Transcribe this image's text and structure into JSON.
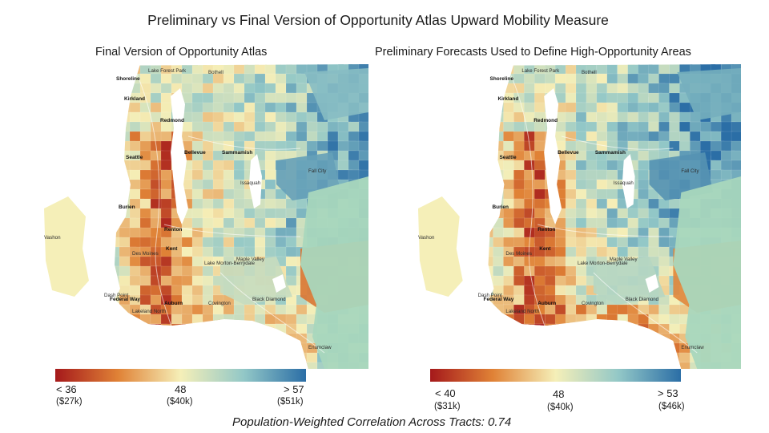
{
  "title": "Preliminary vs Final Version of Opportunity Atlas Upward Mobility Measure",
  "colors": {
    "red": "#a5191b",
    "orange": "#e08236",
    "yellow": "#f5efb8",
    "teal": "#93c8c7",
    "blue": "#2b6ea6",
    "water": "#ffffff",
    "green": "#a9d7bd"
  },
  "left": {
    "subtitle": "Final Version of Opportunity Atlas",
    "legend": {
      "low_value": "< 36",
      "low_income": "($27k)",
      "mid_value": "48",
      "mid_income": "($40k)",
      "high_value": "> 57",
      "high_income": "($51k)"
    },
    "places": [
      "Shoreline",
      "Lake Forest Park",
      "Bothell",
      "Kirkland",
      "Redmond",
      "Seattle",
      "Bellevue",
      "Sammamish",
      "Burien",
      "Renton",
      "Vashon",
      "Kent",
      "Federal Way",
      "Auburn",
      "Des Moines",
      "Issaquah",
      "Fall City",
      "Maple Valley",
      "Black Diamond",
      "Lake Morton-Berrydale",
      "Dash Point",
      "Lakeland North",
      "Covington",
      "Enumclaw"
    ]
  },
  "right": {
    "subtitle": "Preliminary Forecasts Used to Define High-Opportunity Areas",
    "legend": {
      "low_value": "< 40",
      "low_income": "($31k)",
      "mid_value": "48",
      "mid_income": "($40k)",
      "high_value": "> 53",
      "high_income": "($46k)"
    },
    "places": [
      "Shoreline",
      "Lake Forest Park",
      "Bothell",
      "Kirkland",
      "Redmond",
      "Seattle",
      "Bellevue",
      "Sammamish",
      "Burien",
      "Renton",
      "Vashon",
      "Kent",
      "Federal Way",
      "Auburn",
      "Des Moines",
      "Issaquah",
      "Fall City",
      "Maple Valley",
      "Black Diamond",
      "Lake Morton-Berrydale",
      "Dash Point",
      "Lakeland North",
      "Covington",
      "Enumclaw"
    ]
  },
  "footer": {
    "correlation": "Population-Weighted Correlation Across Tracts: 0.74"
  }
}
